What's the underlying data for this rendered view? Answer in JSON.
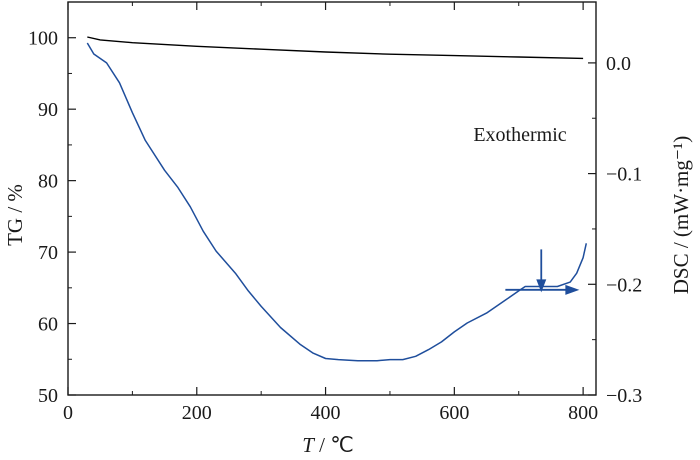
{
  "chart_data": {
    "type": "line",
    "title": "",
    "xlabel": {
      "var": "T",
      "sep": " / ",
      "unit": "℃"
    },
    "ylabel_left": "TG / %",
    "ylabel_right": "DSC / (mW·mg⁻¹)",
    "xlim": [
      0,
      820
    ],
    "ylim_left": [
      50,
      105
    ],
    "ylim_right": [
      -0.3,
      0.055
    ],
    "x_ticks": [
      0,
      200,
      400,
      600,
      800
    ],
    "x_tick_labels": [
      "0",
      "200",
      "400",
      "600",
      "800"
    ],
    "y_left_ticks": [
      50,
      60,
      70,
      80,
      90,
      100
    ],
    "y_left_tick_labels": [
      "50",
      "60",
      "70",
      "80",
      "90",
      "100"
    ],
    "y_right_ticks": [
      0.0,
      -0.1,
      -0.2,
      -0.3
    ],
    "y_right_tick_labels": [
      "0.0",
      "−0.1",
      "−0.2",
      "−0.3"
    ],
    "grid": false,
    "colors": {
      "tg": "#000000",
      "dsc": "#1f4e9c",
      "axes": "#1a1a1a"
    },
    "series": [
      {
        "axis": "left",
        "x": [
          30,
          50,
          100,
          200,
          300,
          400,
          500,
          600,
          700,
          800
        ],
        "y": [
          100.1,
          99.7,
          99.3,
          98.8,
          98.4,
          98.0,
          97.7,
          97.5,
          97.3,
          97.1
        ]
      },
      {
        "axis": "right",
        "x": [
          30,
          40,
          60,
          80,
          100,
          120,
          150,
          170,
          190,
          210,
          230,
          260,
          280,
          300,
          330,
          360,
          380,
          400,
          420,
          450,
          480,
          500,
          520,
          540,
          560,
          580,
          600,
          620,
          650,
          680,
          700,
          710,
          730,
          760,
          780,
          790,
          800,
          805
        ],
        "y": [
          0.018,
          0.008,
          0.0,
          -0.018,
          -0.045,
          -0.07,
          -0.097,
          -0.112,
          -0.13,
          -0.152,
          -0.17,
          -0.19,
          -0.206,
          -0.22,
          -0.239,
          -0.254,
          -0.262,
          -0.267,
          -0.268,
          -0.269,
          -0.269,
          -0.268,
          -0.268,
          -0.265,
          -0.259,
          -0.252,
          -0.243,
          -0.235,
          -0.226,
          -0.214,
          -0.206,
          -0.202,
          -0.202,
          -0.202,
          -0.198,
          -0.19,
          -0.176,
          -0.163
        ]
      }
    ],
    "annotations": [
      {
        "text": "Exothermic",
        "arrow_at": {
          "x": 735,
          "y_left": 64.5
        },
        "arrow_dir": "down"
      },
      {
        "arrow_at": {
          "x": 760,
          "y_right": -0.205
        },
        "arrow_dir": "right"
      }
    ]
  }
}
